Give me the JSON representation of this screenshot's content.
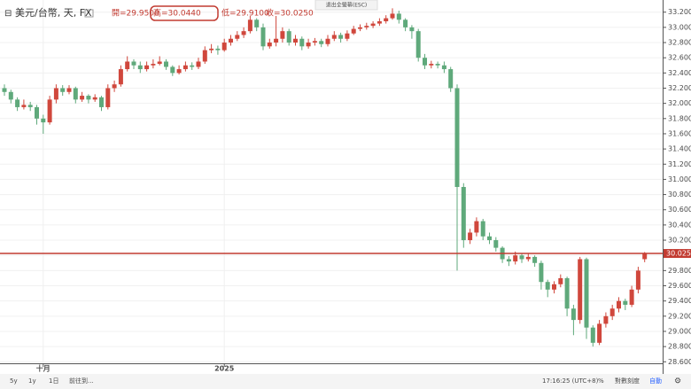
{
  "chart_data": {
    "type": "candlestick",
    "symbol": "美元/台幣, 天, FX",
    "ohlc_labels": [
      "開=29.9500",
      "高=30.0440",
      "低=29.9100",
      "收=30.0250"
    ],
    "up_color": "#d0473c",
    "down_color": "#5fa97b",
    "categories": [
      null,
      null,
      null,
      null,
      null,
      null,
      "十月",
      null,
      null,
      null,
      null,
      null,
      null,
      null,
      null,
      null,
      null,
      null,
      null,
      null,
      null,
      null,
      null,
      null,
      null,
      null,
      null,
      null,
      null,
      null,
      null,
      null,
      null,
      null,
      "2025",
      null,
      null,
      null,
      null,
      null,
      null,
      null,
      null,
      null,
      null,
      null,
      null,
      null,
      null,
      null,
      null,
      null,
      null,
      null,
      null,
      null,
      null,
      null,
      null,
      null,
      null,
      null,
      null,
      null,
      null,
      null,
      null,
      null,
      null,
      null,
      null,
      null,
      null,
      null,
      null,
      null,
      null,
      null,
      null,
      null,
      null,
      null,
      null,
      null,
      null,
      null,
      null,
      null,
      null,
      null,
      null,
      null,
      null,
      null,
      null,
      null,
      null,
      null,
      null,
      null
    ],
    "candles": [
      [
        32.2,
        32.25,
        32.1,
        32.15
      ],
      [
        32.15,
        32.18,
        32.0,
        32.05
      ],
      [
        32.05,
        32.08,
        31.9,
        31.95
      ],
      [
        31.95,
        32.05,
        31.92,
        31.98
      ],
      [
        31.98,
        32.02,
        31.9,
        31.95
      ],
      [
        31.95,
        31.98,
        31.72,
        31.8
      ],
      [
        31.8,
        31.85,
        31.6,
        31.75
      ],
      [
        31.75,
        32.1,
        31.72,
        32.05
      ],
      [
        32.05,
        32.25,
        32.0,
        32.2
      ],
      [
        32.2,
        32.24,
        32.1,
        32.15
      ],
      [
        32.15,
        32.24,
        32.12,
        32.2
      ],
      [
        32.2,
        32.22,
        32.0,
        32.05
      ],
      [
        32.05,
        32.15,
        32.02,
        32.1
      ],
      [
        32.1,
        32.12,
        32.0,
        32.05
      ],
      [
        32.05,
        32.12,
        32.02,
        32.08
      ],
      [
        32.08,
        32.1,
        31.9,
        31.95
      ],
      [
        31.95,
        32.25,
        31.92,
        32.2
      ],
      [
        32.2,
        32.3,
        32.15,
        32.25
      ],
      [
        32.25,
        32.5,
        32.22,
        32.45
      ],
      [
        32.45,
        32.62,
        32.42,
        32.55
      ],
      [
        32.55,
        32.58,
        32.45,
        32.5
      ],
      [
        32.5,
        32.55,
        32.4,
        32.45
      ],
      [
        32.45,
        32.55,
        32.42,
        32.5
      ],
      [
        32.5,
        32.58,
        32.46,
        32.52
      ],
      [
        32.52,
        32.62,
        32.5,
        32.55
      ],
      [
        32.55,
        32.58,
        32.44,
        32.48
      ],
      [
        32.48,
        32.5,
        32.36,
        32.4
      ],
      [
        32.4,
        32.5,
        32.38,
        32.45
      ],
      [
        32.45,
        32.55,
        32.42,
        32.5
      ],
      [
        32.5,
        32.54,
        32.44,
        32.48
      ],
      [
        32.48,
        32.6,
        32.45,
        32.55
      ],
      [
        32.55,
        32.75,
        32.52,
        32.7
      ],
      [
        32.7,
        32.78,
        32.66,
        32.72
      ],
      [
        32.72,
        32.76,
        32.64,
        32.7
      ],
      [
        32.7,
        32.85,
        32.68,
        32.8
      ],
      [
        32.8,
        32.9,
        32.76,
        32.85
      ],
      [
        32.85,
        32.95,
        32.82,
        32.9
      ],
      [
        32.9,
        33.0,
        32.86,
        32.95
      ],
      [
        32.95,
        33.15,
        32.92,
        33.1
      ],
      [
        33.1,
        33.12,
        32.95,
        33.0
      ],
      [
        33.0,
        33.05,
        32.7,
        32.75
      ],
      [
        32.75,
        32.85,
        32.72,
        32.8
      ],
      [
        32.8,
        33.15,
        32.75,
        32.85
      ],
      [
        32.85,
        33.0,
        32.8,
        32.95
      ],
      [
        32.95,
        32.98,
        32.76,
        32.8
      ],
      [
        32.8,
        32.9,
        32.76,
        32.85
      ],
      [
        32.85,
        32.88,
        32.7,
        32.75
      ],
      [
        32.75,
        32.85,
        32.72,
        32.8
      ],
      [
        32.8,
        32.86,
        32.76,
        32.82
      ],
      [
        32.82,
        32.85,
        32.74,
        32.78
      ],
      [
        32.78,
        32.9,
        32.75,
        32.85
      ],
      [
        32.85,
        32.95,
        32.82,
        32.9
      ],
      [
        32.9,
        32.93,
        32.8,
        32.85
      ],
      [
        32.85,
        32.96,
        32.82,
        32.92
      ],
      [
        32.92,
        33.02,
        32.9,
        32.98
      ],
      [
        32.98,
        33.04,
        32.95,
        33.0
      ],
      [
        33.0,
        33.06,
        32.97,
        33.02
      ],
      [
        33.02,
        33.08,
        32.99,
        33.05
      ],
      [
        33.05,
        33.12,
        33.02,
        33.08
      ],
      [
        33.08,
        33.16,
        33.05,
        33.12
      ],
      [
        33.12,
        33.25,
        33.1,
        33.18
      ],
      [
        33.18,
        33.22,
        33.05,
        33.1
      ],
      [
        33.1,
        33.12,
        32.95,
        33.0
      ],
      [
        33.0,
        33.03,
        32.85,
        32.95
      ],
      [
        32.95,
        32.98,
        32.55,
        32.6
      ],
      [
        32.6,
        32.65,
        32.45,
        32.5
      ],
      [
        32.5,
        32.56,
        32.46,
        32.52
      ],
      [
        32.52,
        32.55,
        32.46,
        32.5
      ],
      [
        32.5,
        32.55,
        32.4,
        32.45
      ],
      [
        32.45,
        32.48,
        32.15,
        32.2
      ],
      [
        32.2,
        32.25,
        29.8,
        30.9
      ],
      [
        30.9,
        30.95,
        30.1,
        30.2
      ],
      [
        30.2,
        30.35,
        30.15,
        30.3
      ],
      [
        30.3,
        30.5,
        30.25,
        30.45
      ],
      [
        30.45,
        30.48,
        30.2,
        30.25
      ],
      [
        30.25,
        30.3,
        30.15,
        30.2
      ],
      [
        30.2,
        30.24,
        30.05,
        30.1
      ],
      [
        30.1,
        30.12,
        29.9,
        29.95
      ],
      [
        29.95,
        29.99,
        29.86,
        29.92
      ],
      [
        29.92,
        30.05,
        29.88,
        30.0
      ],
      [
        30.0,
        30.03,
        29.9,
        29.95
      ],
      [
        29.95,
        30.03,
        29.92,
        29.98
      ],
      [
        29.98,
        30.0,
        29.85,
        29.9
      ],
      [
        29.9,
        29.93,
        29.55,
        29.65
      ],
      [
        29.65,
        29.68,
        29.45,
        29.55
      ],
      [
        29.55,
        29.66,
        29.5,
        29.62
      ],
      [
        29.62,
        29.75,
        29.58,
        29.7
      ],
      [
        29.7,
        29.72,
        29.2,
        29.3
      ],
      [
        29.3,
        29.35,
        28.95,
        29.15
      ],
      [
        29.15,
        29.98,
        29.1,
        29.95
      ],
      [
        29.95,
        29.97,
        28.9,
        29.05
      ],
      [
        29.05,
        29.08,
        28.8,
        28.85
      ],
      [
        28.85,
        29.15,
        28.82,
        29.1
      ],
      [
        29.1,
        29.25,
        29.05,
        29.2
      ],
      [
        29.2,
        29.35,
        29.15,
        29.3
      ],
      [
        29.3,
        29.45,
        29.25,
        29.4
      ],
      [
        29.4,
        29.43,
        29.28,
        29.35
      ],
      [
        29.35,
        29.6,
        29.32,
        29.55
      ],
      [
        29.55,
        29.85,
        29.5,
        29.8
      ],
      [
        29.95,
        30.044,
        29.91,
        30.025
      ]
    ],
    "ylim": [
      28.44,
      33.36
    ],
    "yticks": [
      {
        "value": 28.6,
        "label": "28.6000"
      },
      {
        "value": 28.8,
        "label": "28.8000"
      },
      {
        "value": 29.0,
        "label": "29.0000"
      },
      {
        "value": 29.2,
        "label": "29.2000"
      },
      {
        "value": 29.4,
        "label": "29.4000"
      },
      {
        "value": 29.6,
        "label": "29.6000"
      },
      {
        "value": 29.8,
        "label": "29.8000"
      },
      {
        "value": 30.0,
        "label": "30.0000"
      },
      {
        "value": 30.2,
        "label": "30.2000"
      },
      {
        "value": 30.4,
        "label": "30.4000"
      },
      {
        "value": 30.6,
        "label": "30.6000"
      },
      {
        "value": 30.8,
        "label": "30.8000"
      },
      {
        "value": 31.0,
        "label": "31.0000"
      },
      {
        "value": 31.2,
        "label": "31.2000"
      },
      {
        "value": 31.4,
        "label": "31.4000"
      },
      {
        "value": 31.6,
        "label": "31.6000"
      },
      {
        "value": 31.8,
        "label": "31.8000"
      },
      {
        "value": 32.0,
        "label": "32.0000"
      },
      {
        "value": 32.2,
        "label": "32.2000"
      },
      {
        "value": 32.4,
        "label": "32.4000"
      },
      {
        "value": 32.6,
        "label": "32.6000"
      },
      {
        "value": 32.8,
        "label": "32.8000"
      },
      {
        "value": 33.0,
        "label": "33.0000"
      },
      {
        "value": 33.2,
        "label": "33.2000"
      }
    ],
    "last_price": {
      "value": 30.025,
      "label": "30.0250",
      "color": "#c23b31"
    }
  },
  "ui": {
    "exit_fullscreen": "退出全螢幕(ESC)",
    "ranges": [
      "5y",
      "1y",
      "1日"
    ],
    "goto": "前往到...",
    "clock": "17:16:25 (UTC+8)",
    "percent": "%",
    "log": "對數刻度",
    "auto": "自動"
  }
}
